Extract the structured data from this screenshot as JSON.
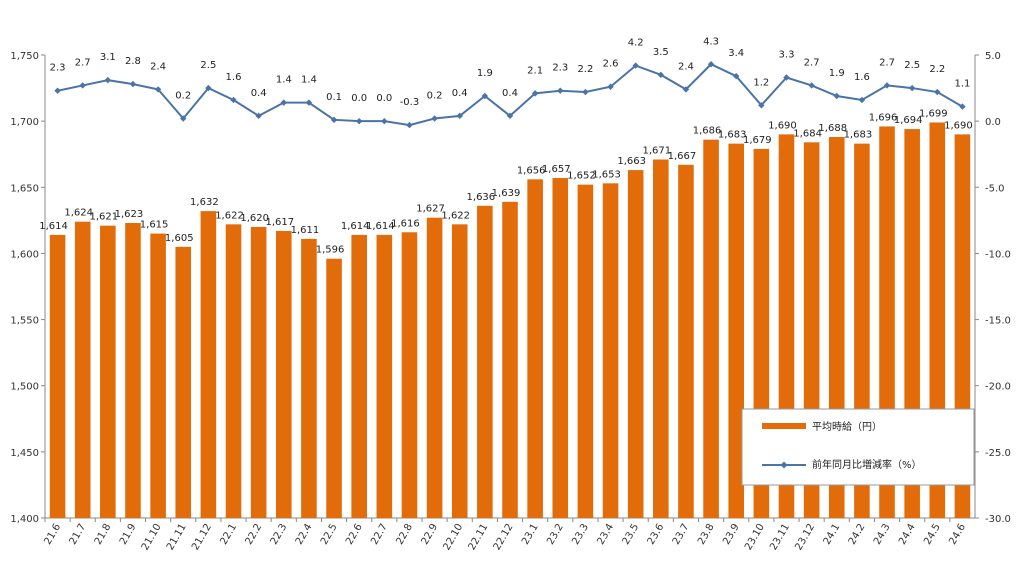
{
  "chart_data": {
    "type": "bar",
    "categories": [
      "21.6",
      "21.7",
      "21.8",
      "21.9",
      "21.10",
      "21.11",
      "21.12",
      "22.1",
      "22.2",
      "22.3",
      "22.4",
      "22.5",
      "22.6",
      "22.7",
      "22.8",
      "22.9",
      "22.10",
      "22.11",
      "22.12",
      "23.1",
      "23.2",
      "23.3",
      "23.4",
      "23.5",
      "23.6",
      "23.7",
      "23.8",
      "23.9",
      "23.10",
      "23.11",
      "23.12",
      "24.1",
      "24.2",
      "24.3",
      "24.4",
      "24.5",
      "24.6"
    ],
    "series": [
      {
        "name": "平均時給（円）",
        "kind": "bar",
        "axis": "left",
        "color": "#E36C0A",
        "values": [
          1614,
          1624,
          1621,
          1623,
          1615,
          1605,
          1632,
          1622,
          1620,
          1617,
          1611,
          1596,
          1614,
          1614,
          1616,
          1627,
          1622,
          1636,
          1639,
          1656,
          1657,
          1652,
          1653,
          1663,
          1671,
          1667,
          1686,
          1683,
          1679,
          1690,
          1684,
          1688,
          1683,
          1696,
          1694,
          1699,
          1690
        ],
        "labels": [
          "1,614",
          "1,624",
          "1,621",
          "1,623",
          "1,615",
          "1,605",
          "1,632",
          "1,622",
          "1,620",
          "1,617",
          "1,611",
          "1,596",
          "1,614",
          "1,614",
          "1,616",
          "1,627",
          "1,622",
          "1,636",
          "1,639",
          "1,656",
          "1,657",
          "1,652",
          "1,653",
          "1,663",
          "1,671",
          "1,667",
          "1,686",
          "1,683",
          "1,679",
          "1,690",
          "1,684",
          "1,688",
          "1,683",
          "1,696",
          "1,694",
          "1,699",
          "1,690"
        ]
      },
      {
        "name": "前年同月比増減率（%）",
        "kind": "line",
        "axis": "right",
        "color": "#4A73A8",
        "values": [
          2.3,
          2.7,
          3.1,
          2.8,
          2.4,
          0.2,
          2.5,
          1.6,
          0.4,
          1.4,
          1.4,
          0.1,
          0.0,
          0.0,
          -0.3,
          0.2,
          0.4,
          1.9,
          0.4,
          2.1,
          2.3,
          2.2,
          2.6,
          4.2,
          3.5,
          2.4,
          4.3,
          3.4,
          1.2,
          3.3,
          2.7,
          1.9,
          1.6,
          2.7,
          2.5,
          2.2,
          1.1
        ],
        "labels": [
          "2.3",
          "2.7",
          "3.1",
          "2.8",
          "2.4",
          "0.2",
          "2.5",
          "1.6",
          "0.4",
          "1.4",
          "1.4",
          "0.1",
          "0.0",
          "0.0",
          "-0.3",
          "0.2",
          "0.4",
          "1.9",
          "0.4",
          "2.1",
          "2.3",
          "2.2",
          "2.6",
          "4.2",
          "3.5",
          "2.4",
          "4.3",
          "3.4",
          "1.2",
          "3.3",
          "2.7",
          "1.9",
          "1.6",
          "2.7",
          "2.5",
          "2.2",
          "1.1"
        ],
        "negative_label_color": "#FF0000"
      }
    ],
    "y_left": {
      "lim": [
        1400,
        1750
      ],
      "ticks": [
        "1,400",
        "1,450",
        "1,500",
        "1,550",
        "1,600",
        "1,650",
        "1,700",
        "1,750"
      ]
    },
    "y_right": {
      "lim": [
        -30,
        5
      ],
      "ticks": [
        "-30.0",
        "-25.0",
        "-20.0",
        "-15.0",
        "-10.0",
        "-5.0",
        "0.0",
        "5.0"
      ]
    },
    "legend": {
      "placement": "bottom-right",
      "items": [
        "平均時給（円）",
        "前年同月比増減率（%）"
      ]
    },
    "grid": false,
    "title": "",
    "xlabel": "",
    "ylabel": ""
  }
}
